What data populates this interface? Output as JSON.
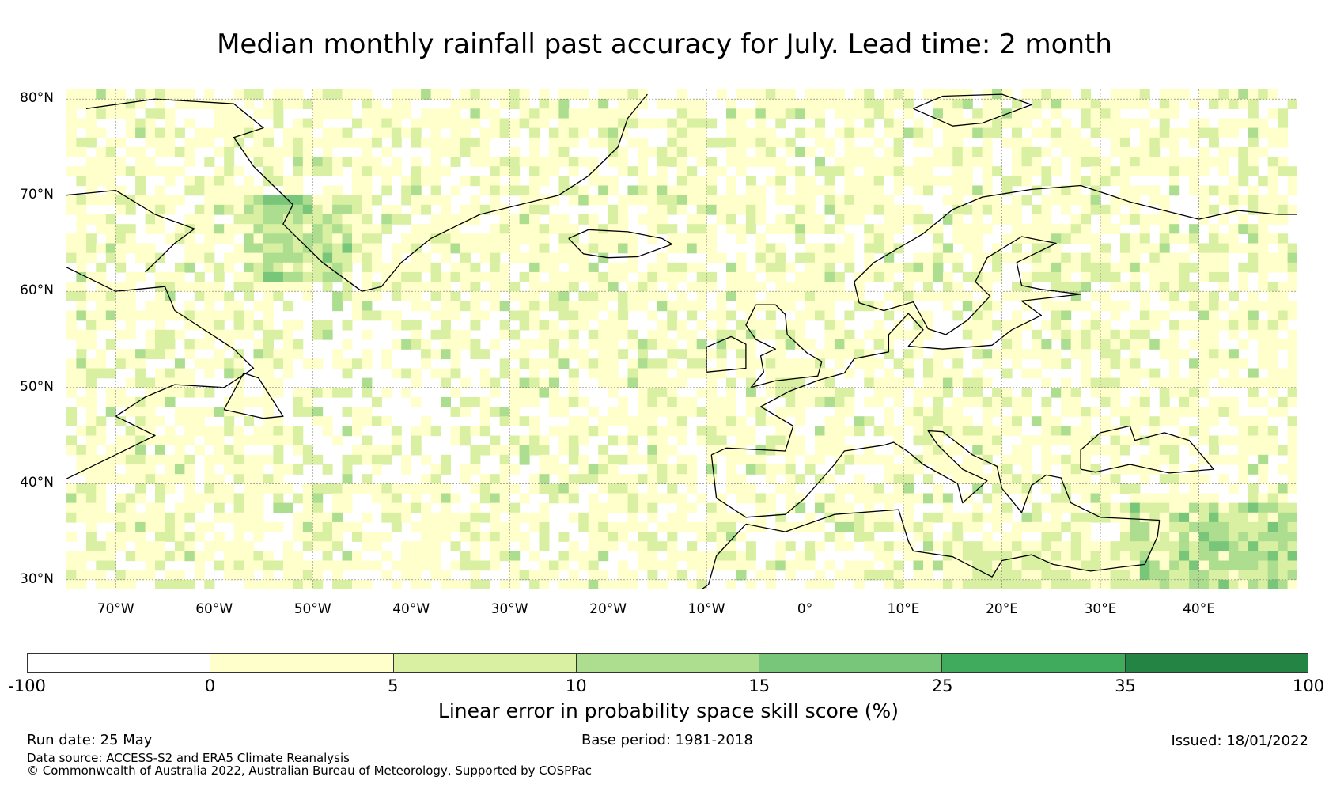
{
  "title": "Median monthly rainfall past accuracy for July. Lead time: 2 month",
  "map": {
    "extent": {
      "lon": [
        -75,
        50
      ],
      "lat": [
        29,
        81
      ]
    },
    "lat_ticks": [
      {
        "value": 80,
        "label": "80°N"
      },
      {
        "value": 70,
        "label": "70°N"
      },
      {
        "value": 60,
        "label": "60°N"
      },
      {
        "value": 50,
        "label": "50°N"
      },
      {
        "value": 40,
        "label": "40°N"
      },
      {
        "value": 30,
        "label": "30°N"
      }
    ],
    "lon_ticks": [
      {
        "value": -70,
        "label": "70°W"
      },
      {
        "value": -60,
        "label": "60°W"
      },
      {
        "value": -50,
        "label": "50°W"
      },
      {
        "value": -40,
        "label": "40°W"
      },
      {
        "value": -30,
        "label": "30°W"
      },
      {
        "value": -20,
        "label": "20°W"
      },
      {
        "value": -10,
        "label": "10°W"
      },
      {
        "value": 0,
        "label": "0°"
      },
      {
        "value": 10,
        "label": "10°E"
      },
      {
        "value": 20,
        "label": "20°E"
      },
      {
        "value": 30,
        "label": "30°E"
      },
      {
        "value": 40,
        "label": "40°E"
      }
    ],
    "grid": true,
    "coastline_color": "#000000",
    "regions_higher_skill": [
      {
        "name": "southwest Greenland coast",
        "lon": [
          -57,
          -47
        ],
        "lat": [
          62,
          70
        ],
        "class": "10-15"
      },
      {
        "name": "Middle East",
        "lon": [
          33,
          50
        ],
        "lat": [
          29,
          38
        ],
        "class": "10-15"
      },
      {
        "name": "North Africa",
        "lon": [
          15,
          33
        ],
        "lat": [
          29,
          34
        ],
        "class": "5-10"
      }
    ]
  },
  "colorbar": {
    "ticks": [
      "-100",
      "0",
      "5",
      "10",
      "15",
      "25",
      "35",
      "100"
    ],
    "colors": [
      "#ffffff",
      "#ffffcc",
      "#d9f0a3",
      "#addd8e",
      "#78c679",
      "#41ab5d",
      "#238443"
    ],
    "label": "Linear error in probability space skill score (%)"
  },
  "footer": {
    "run_date": "Run date: 25 May",
    "base_period": "Base period: 1981-2018",
    "issued": "Issued: 18/01/2022",
    "data_source": "Data source: ACCESS-S2 and ERA5 Climate Reanalysis",
    "copyright": "© Commonwealth of Australia 2022, Australian Bureau of Meteorology, Supported by COSPPac"
  }
}
